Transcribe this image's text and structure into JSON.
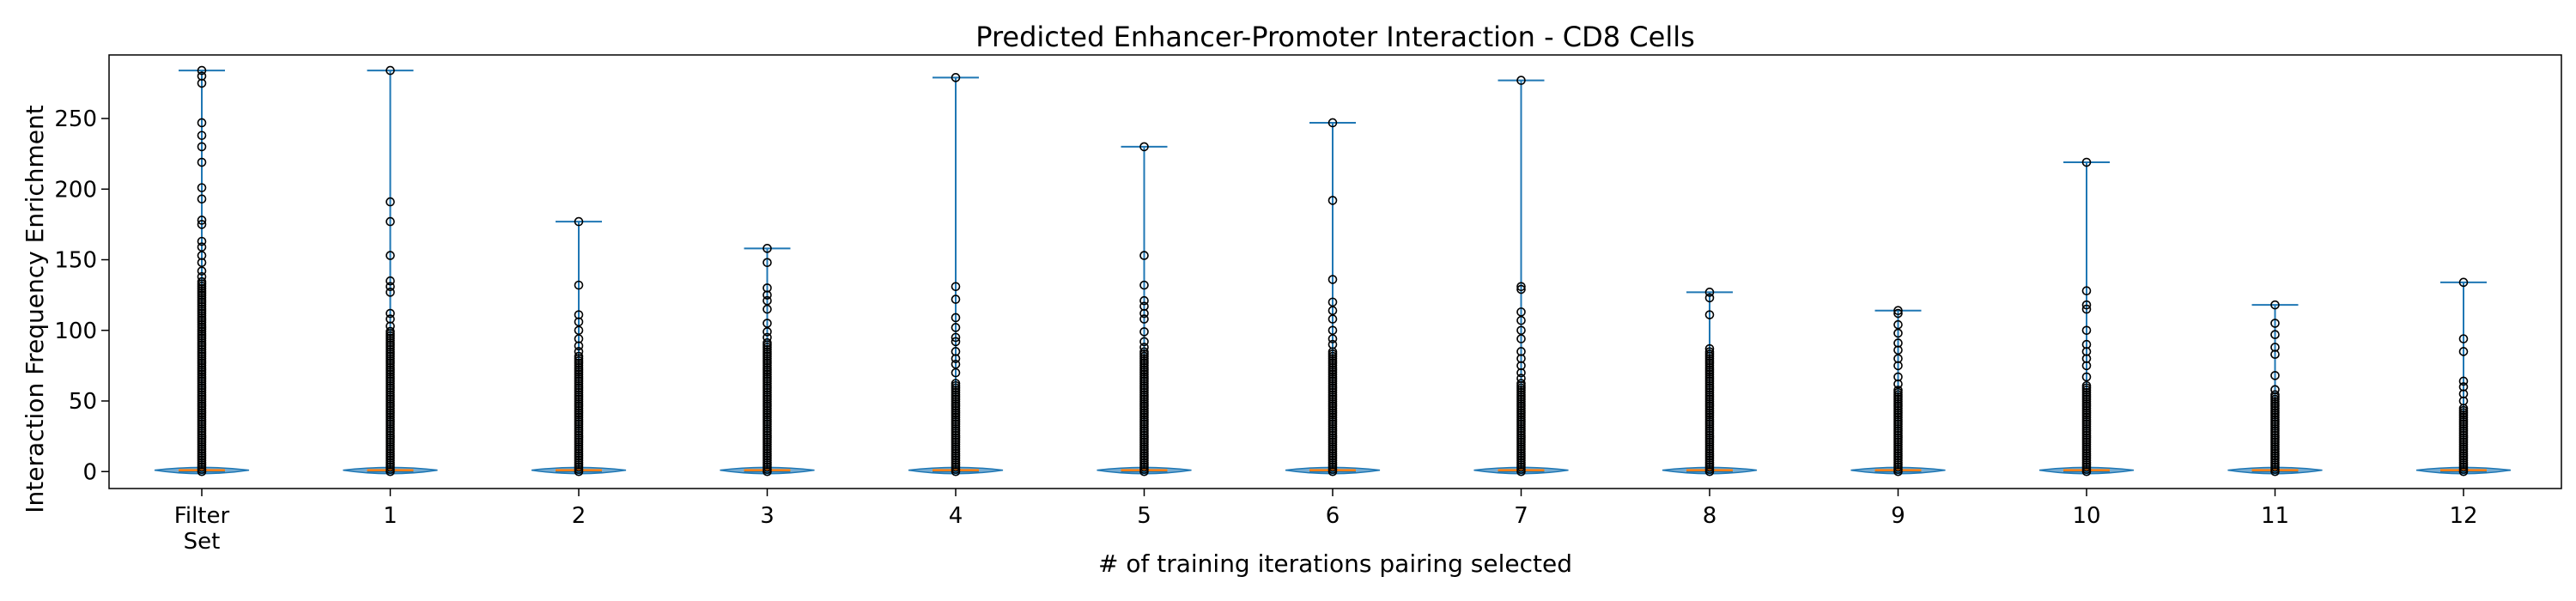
{
  "chart_data": {
    "type": "violin",
    "title": "Predicted Enhancer-Promoter Interaction - CD8 Cells",
    "xlabel": "# of training iterations pairing selected",
    "ylabel": "Interaction Frequency Enrichment",
    "ylim": [
      -12,
      295
    ],
    "yticks": [
      0,
      50,
      100,
      150,
      200,
      250
    ],
    "grid": false,
    "categories": [
      "Filter\nSet",
      "1",
      "2",
      "3",
      "4",
      "5",
      "6",
      "7",
      "8",
      "9",
      "10",
      "11",
      "12"
    ],
    "series": [
      {
        "category": "Filter\nSet",
        "min": 0,
        "max": 284,
        "median": 1,
        "dense_upper": 135,
        "outliers": [
          284,
          280,
          275,
          247,
          238,
          230,
          219,
          201,
          193,
          178,
          175,
          163,
          159,
          153,
          148,
          142,
          138
        ]
      },
      {
        "category": "1",
        "min": 0,
        "max": 284,
        "median": 1,
        "dense_upper": 100,
        "outliers": [
          284,
          191,
          177,
          153,
          135,
          131,
          127,
          112,
          108,
          103
        ]
      },
      {
        "category": "2",
        "min": 0,
        "max": 177,
        "median": 1,
        "dense_upper": 82,
        "outliers": [
          177,
          132,
          111,
          106,
          100,
          94,
          89,
          85
        ]
      },
      {
        "category": "3",
        "min": 0,
        "max": 158,
        "median": 1,
        "dense_upper": 92,
        "outliers": [
          158,
          148,
          130,
          125,
          121,
          115,
          105,
          99,
          95
        ]
      },
      {
        "category": "4",
        "min": 0,
        "max": 279,
        "median": 1,
        "dense_upper": 64,
        "outliers": [
          279,
          131,
          122,
          109,
          102,
          95,
          92,
          85,
          80,
          76,
          70
        ]
      },
      {
        "category": "5",
        "min": 0,
        "max": 230,
        "median": 1,
        "dense_upper": 85,
        "outliers": [
          230,
          153,
          132,
          121,
          117,
          112,
          108,
          99,
          92,
          88
        ]
      },
      {
        "category": "6",
        "min": 0,
        "max": 247,
        "median": 1,
        "dense_upper": 85,
        "outliers": [
          247,
          192,
          136,
          120,
          114,
          108,
          100,
          94,
          90
        ]
      },
      {
        "category": "7",
        "min": 0,
        "max": 277,
        "median": 1,
        "dense_upper": 63,
        "outliers": [
          277,
          131,
          129,
          113,
          107,
          100,
          94,
          85,
          80,
          75,
          70,
          66
        ]
      },
      {
        "category": "8",
        "min": 0,
        "max": 127,
        "median": 1,
        "dense_upper": 85,
        "outliers": [
          127,
          123,
          111,
          87
        ]
      },
      {
        "category": "9",
        "min": 0,
        "max": 114,
        "median": 1,
        "dense_upper": 58,
        "outliers": [
          114,
          112,
          104,
          98,
          91,
          86,
          80,
          75,
          67,
          62
        ]
      },
      {
        "category": "10",
        "min": 0,
        "max": 219,
        "median": 1,
        "dense_upper": 62,
        "outliers": [
          219,
          128,
          118,
          115,
          100,
          90,
          85,
          80,
          75,
          67
        ]
      },
      {
        "category": "11",
        "min": 0,
        "max": 118,
        "median": 1,
        "dense_upper": 55,
        "outliers": [
          118,
          105,
          97,
          88,
          83,
          68,
          58
        ]
      },
      {
        "category": "12",
        "min": 0,
        "max": 134,
        "median": 1,
        "dense_upper": 45,
        "outliers": [
          134,
          94,
          85,
          64,
          60,
          55,
          50
        ]
      }
    ],
    "colors": {
      "body": "#1f77b4",
      "median": "#ff7f0e",
      "outlier_edge": "#000000",
      "axis": "#000000"
    }
  }
}
